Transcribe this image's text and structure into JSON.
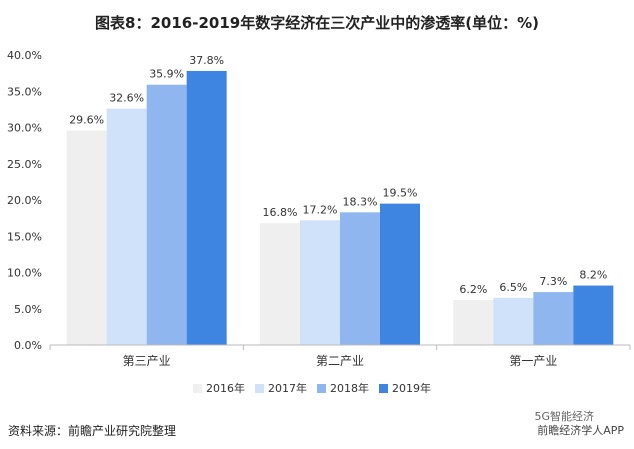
{
  "chart_data": {
    "type": "bar",
    "title": "图表8：2016-2019年数字经济在三次产业中的渗透率(单位：%)",
    "categories": [
      "第三产业",
      "第二产业",
      "第一产业"
    ],
    "series": [
      {
        "name": "2016年",
        "values": [
          29.6,
          16.8,
          6.2
        ],
        "color": "#efefef"
      },
      {
        "name": "2017年",
        "values": [
          32.6,
          17.2,
          6.5
        ],
        "color": "#cfe2f9"
      },
      {
        "name": "2018年",
        "values": [
          35.9,
          18.3,
          7.3
        ],
        "color": "#8fb6ee"
      },
      {
        "name": "2019年",
        "values": [
          37.8,
          19.5,
          8.2
        ],
        "color": "#3d85e0"
      }
    ],
    "data_labels": [
      [
        "29.6%",
        "32.6%",
        "35.9%",
        "37.8%"
      ],
      [
        "16.8%",
        "17.2%",
        "18.3%",
        "19.5%"
      ],
      [
        "6.2%",
        "6.5%",
        "7.3%",
        "8.2%"
      ]
    ],
    "yticks": [
      "0.0%",
      "5.0%",
      "10.0%",
      "15.0%",
      "20.0%",
      "25.0%",
      "30.0%",
      "35.0%",
      "40.0%"
    ],
    "ylim": [
      0,
      40
    ],
    "legend_position": "bottom",
    "grid": false
  },
  "footer": {
    "source": "资料来源：前瞻产业研究院整理",
    "brand": "前瞻经济学人APP",
    "brand2": "5G智能经济"
  }
}
